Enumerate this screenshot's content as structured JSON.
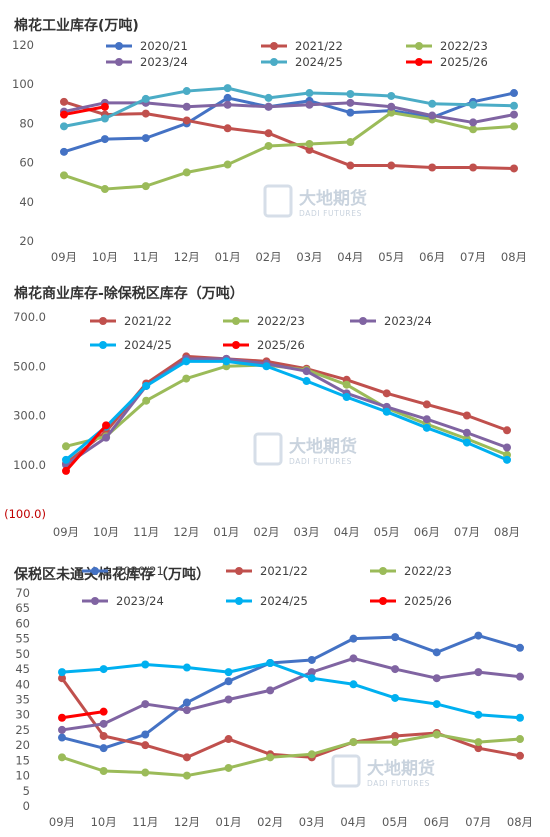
{
  "watermark": {
    "cn": "大地期货",
    "en": "DADI FUTURES"
  },
  "charts": [
    {
      "type": "line",
      "title": "棉花工业库存(万吨)",
      "categories": [
        "09月",
        "10月",
        "11月",
        "12月",
        "01月",
        "02月",
        "03月",
        "04月",
        "05月",
        "06月",
        "07月",
        "08月"
      ],
      "y_ticks": [
        "20",
        "40",
        "60",
        "80",
        "100",
        "120"
      ],
      "ylim": [
        20,
        120
      ],
      "grid": false,
      "legend_position": "top",
      "series": [
        {
          "name": "2020/21",
          "color": "#4472c4",
          "values": [
            65.5,
            72.0,
            72.5,
            80.0,
            93.0,
            88.5,
            91.5,
            85.5,
            86.5,
            83.0,
            91.0,
            95.5
          ]
        },
        {
          "name": "2021/22",
          "color": "#c0504d",
          "values": [
            91.0,
            84.5,
            85.0,
            81.5,
            77.5,
            75.0,
            66.5,
            58.5,
            58.5,
            57.5,
            57.5,
            57.0
          ]
        },
        {
          "name": "2022/23",
          "color": "#9bbb59",
          "values": [
            53.5,
            46.5,
            48.0,
            55.0,
            59.0,
            68.5,
            69.5,
            70.5,
            85.5,
            82.0,
            77.0,
            78.5
          ]
        },
        {
          "name": "2023/24",
          "color": "#8064a2",
          "values": [
            86.0,
            90.5,
            90.5,
            88.5,
            89.5,
            88.5,
            89.5,
            90.5,
            88.5,
            84.0,
            80.5,
            84.5
          ]
        },
        {
          "name": "2024/25",
          "color": "#4bacc6",
          "values": [
            78.5,
            82.5,
            92.5,
            96.5,
            98.0,
            93.0,
            95.5,
            95.0,
            94.0,
            90.0,
            89.5,
            89.0
          ]
        },
        {
          "name": "2025/26",
          "color": "#ff0000",
          "values": [
            84.5,
            88.5
          ]
        }
      ]
    },
    {
      "type": "line",
      "title": "棉花商业库存-除保税区库存（万吨）",
      "categories": [
        "09月",
        "10月",
        "11月",
        "12月",
        "01月",
        "02月",
        "03月",
        "04月",
        "05月",
        "06月",
        "07月",
        "08月"
      ],
      "y_ticks": [
        "(100.0)",
        "100.0",
        "300.0",
        "500.0",
        "700.0"
      ],
      "tick_values": [
        -100,
        100,
        300,
        500,
        700
      ],
      "ylim": [
        -100,
        700
      ],
      "grid": false,
      "legend_position": "top",
      "series": [
        {
          "name": "2021/22",
          "color": "#c0504d",
          "values": [
            105,
            235,
            430,
            540,
            530,
            520,
            490,
            445,
            390,
            345,
            300,
            240
          ]
        },
        {
          "name": "2022/23",
          "color": "#9bbb59",
          "values": [
            175,
            215,
            360,
            450,
            500,
            505,
            485,
            425,
            330,
            265,
            205,
            140
          ]
        },
        {
          "name": "2023/24",
          "color": "#8064a2",
          "values": [
            100,
            210,
            420,
            530,
            530,
            510,
            480,
            390,
            335,
            285,
            230,
            170
          ]
        },
        {
          "name": "2024/25",
          "color": "#00b0f0",
          "values": [
            120,
            255,
            420,
            520,
            520,
            500,
            440,
            375,
            315,
            250,
            190,
            120
          ]
        },
        {
          "name": "2025/26",
          "color": "#ff0000",
          "values": [
            75,
            260
          ]
        }
      ]
    },
    {
      "type": "line",
      "title": "保税区未通关棉花库存（万吨）",
      "categories": [
        "09月",
        "10月",
        "11月",
        "12月",
        "01月",
        "02月",
        "03月",
        "04月",
        "05月",
        "06月",
        "07月",
        "08月"
      ],
      "y_ticks": [
        "0",
        "5",
        "10",
        "15",
        "20",
        "25",
        "30",
        "35",
        "40",
        "45",
        "50",
        "55",
        "60",
        "65",
        "70"
      ],
      "ylim": [
        0,
        70
      ],
      "grid": false,
      "legend_position": "top",
      "series": [
        {
          "name": "2020/21",
          "color": "#4472c4",
          "values": [
            22.5,
            19.0,
            23.5,
            34.0,
            41.0,
            47.0,
            48.0,
            55.0,
            55.5,
            50.5,
            56.0,
            52.0
          ]
        },
        {
          "name": "2021/22",
          "color": "#c0504d",
          "values": [
            42.0,
            23.0,
            20.0,
            16.0,
            22.0,
            17.0,
            16.0,
            21.0,
            23.0,
            24.0,
            19.0,
            16.5
          ]
        },
        {
          "name": "2022/23",
          "color": "#9bbb59",
          "values": [
            16.0,
            11.5,
            11.0,
            10.0,
            12.5,
            16.0,
            17.0,
            21.0,
            21.0,
            23.5,
            21.0,
            22.0
          ]
        },
        {
          "name": "2023/24",
          "color": "#8064a2",
          "values": [
            25.0,
            27.0,
            33.5,
            31.5,
            35.0,
            38.0,
            44.0,
            48.5,
            45.0,
            42.0,
            44.0,
            42.5
          ]
        },
        {
          "name": "2024/25",
          "color": "#00b0f0",
          "values": [
            44.0,
            45.0,
            46.5,
            45.5,
            44.0,
            47.0,
            42.0,
            40.0,
            35.5,
            33.5,
            30.0,
            29.0
          ]
        },
        {
          "name": "2025/26",
          "color": "#ff0000",
          "values": [
            29.0,
            31.0
          ]
        }
      ]
    }
  ]
}
